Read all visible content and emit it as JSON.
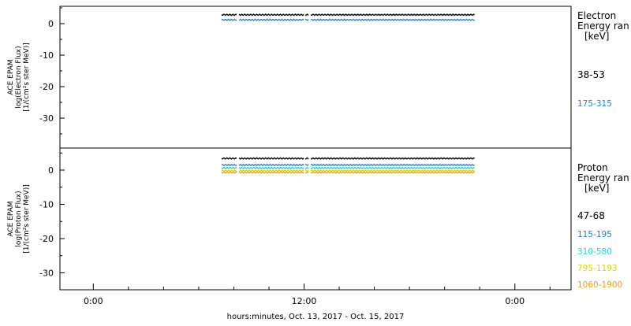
{
  "chart_data": [
    {
      "type": "scatter",
      "ylabel_lines": [
        "ACE EPAM",
        "log(Electron Flux)",
        "[1/(cm²s ster MeV)]"
      ],
      "legend_title_lines": [
        "Electron",
        "Energy ran",
        "[keV]"
      ],
      "yticks": [
        0,
        -10,
        -20,
        -30
      ],
      "ylim": [
        -40,
        5
      ],
      "series": [
        {
          "name": "38-53",
          "color": "#000000",
          "x_start_hours": 7.3,
          "x_end_hours": 21.7,
          "level": 2.8,
          "gaps_hours": [
            8.2,
            12.0,
            12.3
          ]
        },
        {
          "name": "175-315",
          "color": "#1e7fd6",
          "x_start_hours": 7.3,
          "x_end_hours": 21.7,
          "level": 1.2,
          "gaps_hours": [
            8.2,
            12.0,
            12.3
          ]
        }
      ]
    },
    {
      "type": "scatter",
      "ylabel_lines": [
        "ACE EPAM",
        "log(Proton Flux)",
        "[1/(cm²s ster MeV)]"
      ],
      "legend_title_lines": [
        "Proton",
        "Energy ran",
        "[keV]"
      ],
      "yticks": [
        0,
        -10,
        -20,
        -30
      ],
      "ylim": [
        -35,
        6
      ],
      "series": [
        {
          "name": "47-68",
          "color": "#000000",
          "x_start_hours": 7.3,
          "x_end_hours": 21.7,
          "level": 3.4,
          "gaps_hours": [
            8.2,
            12.0,
            12.3
          ]
        },
        {
          "name": "115-195",
          "color": "#1e7fd6",
          "x_start_hours": 7.3,
          "x_end_hours": 21.7,
          "level": 1.5,
          "gaps_hours": [
            8.2,
            12.0,
            12.3
          ]
        },
        {
          "name": "310-580",
          "color": "#22d3d3",
          "x_start_hours": 7.3,
          "x_end_hours": 21.7,
          "level": 0.6,
          "gaps_hours": [
            8.2,
            12.0,
            12.3
          ]
        },
        {
          "name": "795-1193",
          "color": "#d8d800",
          "x_start_hours": 7.3,
          "x_end_hours": 21.7,
          "level": -0.2,
          "gaps_hours": [
            8.2,
            12.0,
            12.3
          ]
        },
        {
          "name": "1060-1900",
          "color": "#f0a000",
          "x_start_hours": 7.3,
          "x_end_hours": 21.7,
          "level": -0.7,
          "gaps_hours": [
            8.2,
            12.0,
            12.3
          ]
        }
      ]
    }
  ],
  "x_axis": {
    "label": "hours:minutes, Oct. 13, 2017 - Oct. 15, 2017",
    "range_hours": [
      -1.9,
      27.2
    ],
    "major_ticks": [
      {
        "hours": 0,
        "label": "0:00"
      },
      {
        "hours": 12,
        "label": "12:00"
      },
      {
        "hours": 24,
        "label": "0:00"
      }
    ],
    "minor_tick_step_hours": 2
  }
}
